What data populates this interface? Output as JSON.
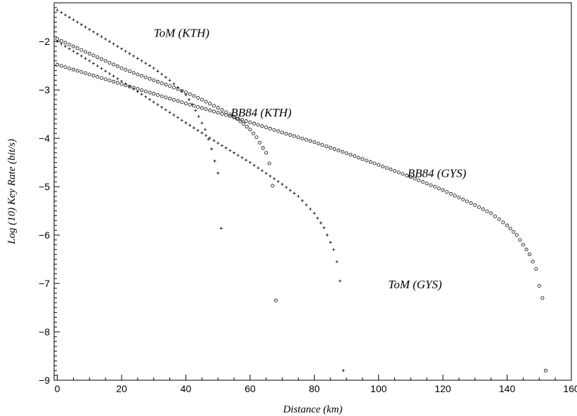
{
  "chart_data": {
    "type": "scatter",
    "title": "",
    "xlabel": "Distance (km)",
    "ylabel": "Log (10) Key Rate (bit/s)",
    "xlim": [
      -1,
      160
    ],
    "ylim": [
      -9,
      -1.2
    ],
    "xticks": [
      0,
      20,
      40,
      60,
      80,
      100,
      120,
      140,
      160
    ],
    "yticks": [
      -2,
      -3,
      -4,
      -5,
      -6,
      -7,
      -8,
      -9
    ],
    "grid": false,
    "legend": "none",
    "annotations": [
      {
        "text": "ToM (KTH)",
        "x": 30,
        "y": -1.9
      },
      {
        "text": "BB84 (KTH)",
        "x": 54,
        "y": -3.55
      },
      {
        "text": "BB84 (GYS)",
        "x": 109,
        "y": -4.8
      },
      {
        "text": "ToM (GYS)",
        "x": 103,
        "y": -7.1
      }
    ],
    "series": [
      {
        "marker": "circle",
        "x": [
          0,
          5,
          10,
          15,
          20,
          25,
          30,
          35,
          40,
          45,
          50,
          55,
          58,
          60,
          62,
          64,
          65,
          66,
          67,
          68
        ],
        "y": [
          -1.95,
          -2.1,
          -2.25,
          -2.4,
          -2.55,
          -2.68,
          -2.8,
          -2.92,
          -3.05,
          -3.2,
          -3.37,
          -3.55,
          -3.7,
          -3.82,
          -3.98,
          -4.2,
          -4.3,
          -4.52,
          -4.98,
          -7.35
        ]
      },
      {
        "marker": "plus",
        "x": [
          0,
          5,
          10,
          15,
          20,
          25,
          30,
          35,
          40,
          42,
          44,
          46,
          48,
          50,
          51
        ],
        "y": [
          -1.35,
          -1.55,
          -1.75,
          -1.95,
          -2.15,
          -2.35,
          -2.55,
          -2.8,
          -3.1,
          -3.3,
          -3.55,
          -3.82,
          -4.22,
          -4.72,
          -5.86
        ]
      },
      {
        "marker": "circle",
        "x": [
          0,
          10,
          20,
          30,
          40,
          50,
          60,
          70,
          80,
          90,
          100,
          110,
          120,
          130,
          135,
          140,
          143,
          145,
          147,
          149,
          150,
          151,
          152
        ],
        "y": [
          -2.48,
          -2.68,
          -2.88,
          -3.08,
          -3.28,
          -3.47,
          -3.67,
          -3.88,
          -4.08,
          -4.31,
          -4.55,
          -4.8,
          -5.07,
          -5.38,
          -5.55,
          -5.8,
          -6.0,
          -6.2,
          -6.4,
          -6.7,
          -7.05,
          -7.3,
          -8.8
        ]
      },
      {
        "marker": "plus",
        "x": [
          0,
          10,
          20,
          30,
          40,
          50,
          60,
          70,
          75,
          80,
          83,
          85,
          86,
          87,
          88,
          89
        ],
        "y": [
          -2.0,
          -2.4,
          -2.82,
          -3.25,
          -3.68,
          -4.1,
          -4.5,
          -4.95,
          -5.2,
          -5.55,
          -5.85,
          -6.15,
          -6.3,
          -6.55,
          -6.95,
          -8.8
        ]
      }
    ]
  }
}
